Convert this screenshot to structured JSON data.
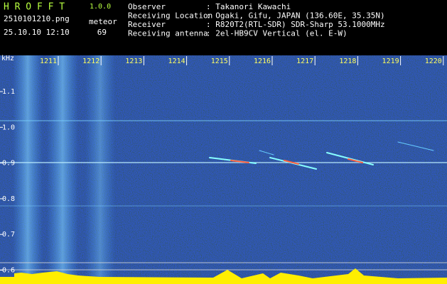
{
  "header": {
    "app_name": "H R O F F T",
    "version": "1.0.0",
    "file": "2510101210.png",
    "meteor_label": "meteor",
    "timestamp": "25.10.10 12:10",
    "meteor_count": "69",
    "fields": [
      {
        "label": "Observer",
        "value": ": Takanori Kawachi"
      },
      {
        "label": "Receiving Location",
        "value": ": Ogaki, Gifu, JAPAN (136.60E, 35.35N)"
      },
      {
        "label": "Receiver",
        "value": ": R820T2(RTL-SDR) SDR-Sharp 53.1000MHz"
      },
      {
        "label": "Receiving antenna",
        "value": ": 2el-HB9CV Vertical (el. E-W)"
      }
    ]
  },
  "axis": {
    "y_unit": "kHz",
    "yticks": [
      "1.1",
      "1.0",
      "0.9",
      "0.8",
      "0.7",
      "0.6"
    ],
    "xticks": [
      "1211",
      "1212",
      "1213",
      "1214",
      "1215",
      "1216",
      "1217",
      "1218",
      "1219",
      "1220"
    ]
  }
}
